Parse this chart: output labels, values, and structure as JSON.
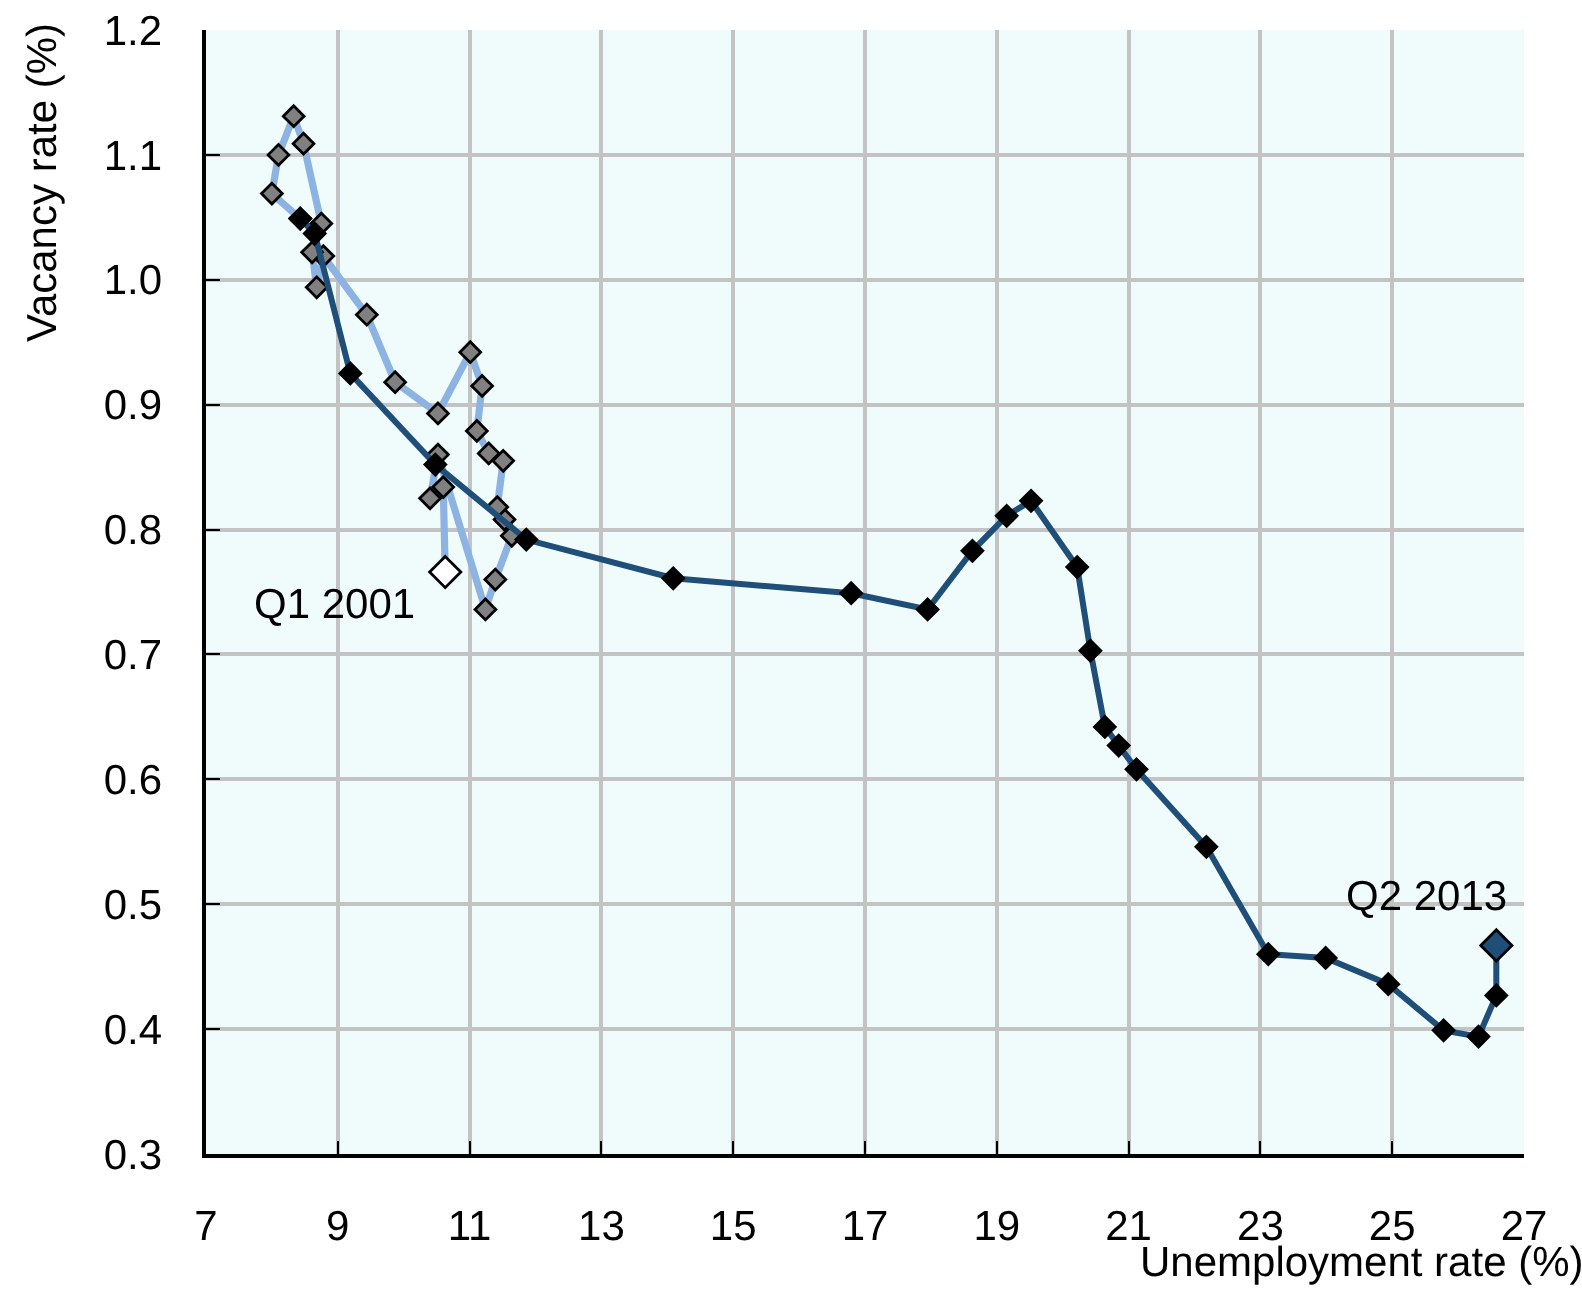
{
  "chart_data": {
    "type": "line",
    "xlabel": "Unemployment rate (%)",
    "ylabel": "Vacancy rate (%)",
    "xlim": [
      7,
      27
    ],
    "xticks": [
      7,
      9,
      11,
      13,
      15,
      17,
      19,
      21,
      23,
      25,
      27
    ],
    "ylim": [
      0.3,
      1.2
    ],
    "yticks": [
      0.3,
      0.4,
      0.5,
      0.6,
      0.7,
      0.8,
      0.9,
      {
        "value": 1,
        "label": "1.0"
      },
      1.1,
      1.2
    ],
    "grid": true,
    "marker": "diamond",
    "series": [
      {
        "color": "#8db3e2",
        "x": [
          10.63,
          10.6,
          10.4,
          10.52,
          11.24,
          11.39,
          11.64,
          11.53,
          11.42,
          11.51,
          11.29,
          11.11,
          11.19,
          11.01,
          10.52,
          9.87,
          9.44,
          8.78,
          8.68,
          8.61,
          8.75,
          8.48,
          8.33,
          8.1,
          8.0,
          8.43
        ],
        "values": [
          0.766,
          0.834,
          0.825,
          0.86,
          0.736,
          0.76,
          0.795,
          0.808,
          0.818,
          0.855,
          0.861,
          0.879,
          0.915,
          0.942,
          0.893,
          0.918,
          0.972,
          1.019,
          0.994,
          1.022,
          1.045,
          1.109,
          1.131,
          1.1,
          1.069,
          1.049
        ],
        "colors": [
          "#ffffff",
          "#808080",
          "#808080",
          "#808080",
          "#808080",
          "#808080",
          "#808080",
          "#808080",
          "#808080",
          "#808080",
          "#808080",
          "#808080",
          "#808080",
          "#808080",
          "#808080",
          "#808080",
          "#808080",
          "#808080",
          "#808080",
          "#808080",
          "#808080",
          "#808080",
          "#808080",
          "#808080",
          "#808080",
          "#808080"
        ]
      },
      {
        "color": "#1f4e79",
        "x": [
          8.43,
          8.65,
          9.19,
          10.48,
          11.86,
          14.09,
          16.79,
          17.95,
          18.63,
          19.15,
          19.52,
          20.22,
          20.42,
          20.64,
          20.85,
          21.12,
          22.18,
          23.12,
          23.99,
          24.94,
          25.78,
          26.31,
          26.58,
          26.58
        ],
        "values": [
          1.049,
          1.037,
          0.925,
          0.852,
          0.792,
          0.761,
          0.749,
          0.736,
          0.783,
          0.811,
          0.823,
          0.77,
          0.703,
          0.642,
          0.627,
          0.608,
          0.546,
          0.46,
          0.457,
          0.436,
          0.399,
          0.394,
          0.427,
          0.467
        ],
        "colors": [
          "#000000",
          "#000000",
          "#000000",
          "#000000",
          "#000000",
          "#000000",
          "#000000",
          "#000000",
          "#000000",
          "#000000",
          "#000000",
          "#000000",
          "#000000",
          "#000000",
          "#000000",
          "#000000",
          "#000000",
          "#000000",
          "#000000",
          "#000000",
          "#000000",
          "#000000",
          "#000000",
          "#1f4e79"
        ]
      }
    ],
    "annotations": [
      {
        "text": "Q1 2001",
        "x": 10.63,
        "y": 0.766
      },
      {
        "text": "Q2 2013",
        "x": 26.58,
        "y": 0.467
      }
    ]
  }
}
